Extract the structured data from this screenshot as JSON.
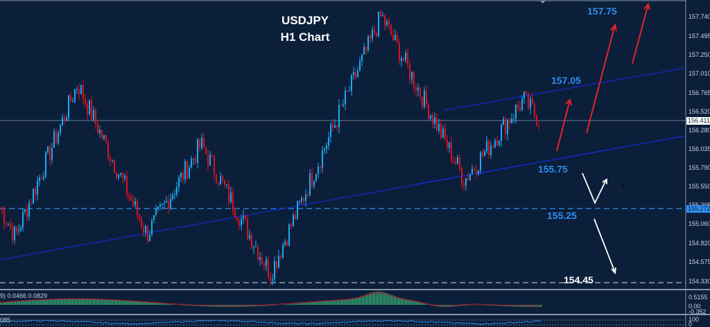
{
  "chart_data": {
    "type": "candlestick",
    "title": "USDJPY",
    "subtitle": "H1 Chart",
    "symbol": "USDJPY",
    "timeframe": "H1",
    "current_price": 156.411,
    "y_axis_ticks": [
      157.74,
      157.495,
      157.25,
      157.01,
      156.765,
      156.52,
      156.28,
      156.035,
      155.79,
      155.55,
      155.305,
      155.06,
      154.82,
      154.575,
      154.33
    ],
    "ylim": [
      154.28,
      157.82
    ],
    "price_tags": {
      "current": "156.411",
      "level": "155.272",
      "overlap": "155.305"
    },
    "approx_swing_points": [
      {
        "label": "left start",
        "price": 155.3
      },
      {
        "label": "swing low",
        "price": 154.92
      },
      {
        "label": "swing high",
        "price": 156.88
      },
      {
        "label": "pullback low",
        "price": 154.95
      },
      {
        "label": "swing high 2",
        "price": 156.1
      },
      {
        "label": "major low",
        "price": 154.45
      },
      {
        "label": "rally to peak",
        "price": 157.75
      },
      {
        "label": "drop low",
        "price": 155.65
      },
      {
        "label": "channel high",
        "price": 156.68
      },
      {
        "label": "latest",
        "price": 156.41
      }
    ],
    "annotations": {
      "levels": [
        {
          "label": "157.75",
          "color": "#2f8ff0"
        },
        {
          "label": "157.05",
          "color": "#2f8ff0"
        },
        {
          "label": "155.75",
          "color": "#2f8ff0"
        },
        {
          "label": "155.25",
          "color": "#2f8ff0"
        },
        {
          "label": "154.45",
          "color": "#ffffff"
        }
      ],
      "horizontal_lines": [
        {
          "price": 156.411,
          "style": "solid",
          "color": "#5b6b80"
        },
        {
          "price": 155.272,
          "style": "dashed",
          "color": "#2f8ff0"
        },
        {
          "price": 154.33,
          "style": "dashed",
          "color": "#b0b8c4"
        }
      ],
      "trendlines": [
        "ascending support",
        "channel upper",
        "channel lower"
      ],
      "arrows": [
        {
          "color": "red",
          "direction": "up",
          "count": 3
        },
        {
          "color": "white",
          "direction": "down-then-up",
          "count": 1
        },
        {
          "color": "white",
          "direction": "down",
          "count": 1
        }
      ]
    },
    "colors": {
      "bull": "#1eaaf0",
      "bear": "#e0101e",
      "background": "#0b1f3a"
    }
  },
  "header": {
    "title": "USDJPY",
    "subtitle": "H1 Chart"
  },
  "axis": {
    "ticks": [
      "157.740",
      "157.495",
      "157.250",
      "157.010",
      "156.765",
      "156.520",
      "156.280",
      "156.035",
      "155.790",
      "155.550",
      "155.305",
      "155.060",
      "154.820",
      "154.575",
      "154.330"
    ],
    "current_price_tag": "156.411",
    "level_tag": "155.272"
  },
  "levels": {
    "l157_75": "157.75",
    "l157_05": "157.05",
    "l155_75": "155.75",
    "l155_25": "155.25",
    "l154_45": "154.45"
  },
  "indicators": {
    "macd": {
      "label": "9) 0.0466 0.0829",
      "ticks": [
        "0.5155",
        "0.00",
        "-0.352"
      ]
    },
    "oscillator": {
      "label": "085",
      "ticks": [
        "100",
        "0"
      ]
    }
  }
}
